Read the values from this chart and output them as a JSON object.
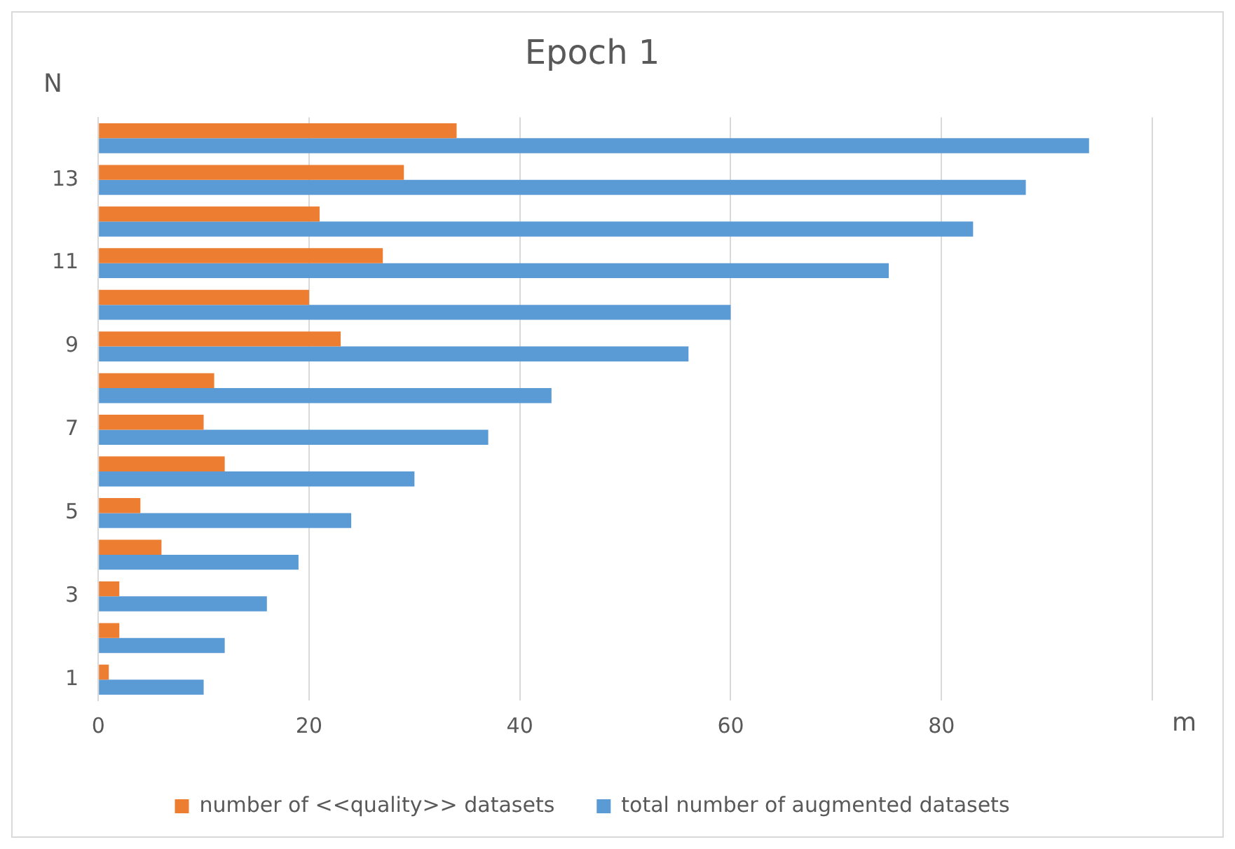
{
  "chart_data": {
    "type": "bar",
    "orientation": "horizontal",
    "title": "Epoch 1",
    "xlabel": "m",
    "ylabel": "N",
    "categories": [
      null,
      "13",
      null,
      "11",
      null,
      "9",
      null,
      "7",
      null,
      "5",
      null,
      "3",
      null,
      "1"
    ],
    "series": [
      {
        "name": "number of <<quality>> datasets",
        "color": "#ed7d31",
        "values": [
          34,
          29,
          21,
          27,
          20,
          23,
          11,
          10,
          12,
          4,
          6,
          2,
          2,
          1
        ]
      },
      {
        "name": "total number of augmented datasets",
        "color": "#5b9bd5",
        "values": [
          94,
          88,
          83,
          75,
          60,
          56,
          43,
          37,
          30,
          24,
          19,
          16,
          12,
          10
        ]
      }
    ],
    "xlim": [
      0,
      100
    ],
    "xticks": [
      0,
      20,
      40,
      60,
      80,
      {
        "value": 100,
        "label": null
      }
    ],
    "grid": "x",
    "legend": "bottom"
  }
}
